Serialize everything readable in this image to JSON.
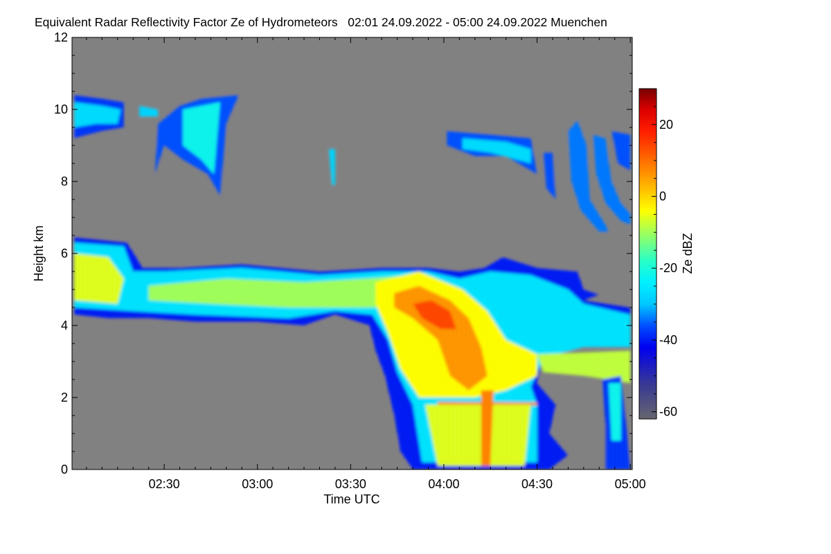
{
  "chart_data": {
    "type": "heatmap",
    "title": "Equivalent Radar Reflectivity Factor Ze of Hydrometeors   02:01 24.09.2022 - 05:00 24.09.2022 Muenchen",
    "xlabel": "Time UTC",
    "ylabel": "Height km",
    "x_unit": "minutes after 02:00 UTC",
    "xlim": [
      1,
      180
    ],
    "ylim": [
      0,
      12
    ],
    "x_ticks": [
      {
        "value": 30,
        "label": "02:30"
      },
      {
        "value": 60,
        "label": "03:00"
      },
      {
        "value": 90,
        "label": "03:30"
      },
      {
        "value": 120,
        "label": "04:00"
      },
      {
        "value": 150,
        "label": "04:30"
      },
      {
        "value": 180,
        "label": "05:00"
      }
    ],
    "y_ticks": [
      {
        "value": 0,
        "label": "0"
      },
      {
        "value": 2,
        "label": "2"
      },
      {
        "value": 4,
        "label": "4"
      },
      {
        "value": 6,
        "label": "6"
      },
      {
        "value": 8,
        "label": "8"
      },
      {
        "value": 10,
        "label": "10"
      },
      {
        "value": 12,
        "label": "12"
      }
    ],
    "colorbar": {
      "label": "Ze dBZ",
      "range": [
        -62,
        30
      ],
      "ticks": [
        {
          "value": 20,
          "label": "20"
        },
        {
          "value": 0,
          "label": "0"
        },
        {
          "value": -20,
          "label": "-20"
        },
        {
          "value": -40,
          "label": "-40"
        },
        {
          "value": -60,
          "label": "-60"
        }
      ]
    },
    "background_color": "#808080",
    "regions": [
      {
        "name": "cirrus-left",
        "dbz": -38,
        "points": [
          [
            1,
            10.4
          ],
          [
            10,
            10.3
          ],
          [
            17,
            10.2
          ],
          [
            17,
            9.5
          ],
          [
            10,
            9.4
          ],
          [
            1,
            9.2
          ]
        ]
      },
      {
        "name": "cirrus-left-core",
        "dbz": -27,
        "points": [
          [
            1,
            10.2
          ],
          [
            10,
            10.1
          ],
          [
            16,
            10.0
          ],
          [
            15,
            9.6
          ],
          [
            8,
            9.6
          ],
          [
            1,
            9.5
          ]
        ]
      },
      {
        "name": "cirrus-patch",
        "dbz": -28,
        "points": [
          [
            22,
            10.1
          ],
          [
            28,
            10.0
          ],
          [
            28,
            9.8
          ],
          [
            22,
            9.8
          ]
        ]
      },
      {
        "name": "fallstreak-1",
        "dbz": -36,
        "points": [
          [
            28,
            9.6
          ],
          [
            35,
            10.1
          ],
          [
            42,
            10.3
          ],
          [
            54,
            10.4
          ],
          [
            50,
            9.6
          ],
          [
            48,
            7.6
          ],
          [
            44,
            8.2
          ],
          [
            36,
            8.6
          ],
          [
            30,
            9.0
          ],
          [
            27,
            8.2
          ]
        ]
      },
      {
        "name": "fallstreak-1-core",
        "dbz": -22,
        "points": [
          [
            36,
            10.0
          ],
          [
            48,
            10.2
          ],
          [
            46,
            8.2
          ],
          [
            42,
            8.6
          ],
          [
            36,
            9.0
          ]
        ]
      },
      {
        "name": "fallstreak-2",
        "dbz": -28,
        "points": [
          [
            83,
            8.9
          ],
          [
            85,
            8.9
          ],
          [
            85,
            7.9
          ],
          [
            84,
            7.9
          ]
        ]
      },
      {
        "name": "cirrus-right",
        "dbz": -36,
        "points": [
          [
            121,
            9.4
          ],
          [
            135,
            9.3
          ],
          [
            148,
            9.2
          ],
          [
            150,
            8.2
          ],
          [
            140,
            8.7
          ],
          [
            130,
            8.7
          ],
          [
            121,
            9.0
          ]
        ]
      },
      {
        "name": "cirrus-right-core",
        "dbz": -27,
        "points": [
          [
            126,
            9.2
          ],
          [
            140,
            9.1
          ],
          [
            148,
            8.9
          ],
          [
            148,
            8.5
          ],
          [
            135,
            8.8
          ],
          [
            126,
            8.9
          ]
        ]
      },
      {
        "name": "fallstreak-3",
        "dbz": -36,
        "points": [
          [
            152,
            8.8
          ],
          [
            155,
            8.8
          ],
          [
            156,
            7.5
          ],
          [
            153,
            7.8
          ]
        ]
      },
      {
        "name": "fallstreak-4",
        "dbz": -34,
        "points": [
          [
            160,
            9.4
          ],
          [
            163,
            9.7
          ],
          [
            166,
            9.0
          ],
          [
            167,
            7.5
          ],
          [
            172,
            6.8
          ],
          [
            173,
            6.6
          ],
          [
            170,
            6.6
          ],
          [
            164,
            7.2
          ],
          [
            161,
            8.0
          ]
        ]
      },
      {
        "name": "fallstreak-5",
        "dbz": -34,
        "points": [
          [
            168,
            9.3
          ],
          [
            172,
            9.2
          ],
          [
            174,
            8.0
          ],
          [
            177,
            7.4
          ],
          [
            180,
            7.1
          ],
          [
            180,
            6.8
          ],
          [
            177,
            6.9
          ],
          [
            172,
            7.4
          ],
          [
            169,
            8.2
          ]
        ]
      },
      {
        "name": "fallstreak-6",
        "dbz": -36,
        "points": [
          [
            174,
            9.4
          ],
          [
            180,
            9.3
          ],
          [
            180,
            8.3
          ],
          [
            176,
            8.5
          ]
        ]
      },
      {
        "name": "main-layer-edge",
        "dbz": -40,
        "points": [
          [
            1,
            6.45
          ],
          [
            18,
            6.3
          ],
          [
            21,
            5.9
          ],
          [
            23,
            5.6
          ],
          [
            35,
            5.6
          ],
          [
            55,
            5.7
          ],
          [
            80,
            5.5
          ],
          [
            100,
            5.6
          ],
          [
            115,
            5.6
          ],
          [
            125,
            5.5
          ],
          [
            133,
            5.6
          ],
          [
            139,
            5.9
          ],
          [
            150,
            5.6
          ],
          [
            163,
            5.5
          ],
          [
            165,
            5.0
          ],
          [
            170,
            4.85
          ],
          [
            165,
            4.7
          ],
          [
            180,
            4.5
          ],
          [
            180,
            3.4
          ],
          [
            165,
            3.4
          ],
          [
            152,
            3.2
          ],
          [
            150,
            2.4
          ],
          [
            156,
            1.8
          ],
          [
            154,
            1.0
          ],
          [
            160,
            0.4
          ],
          [
            154,
            0
          ],
          [
            110,
            0
          ],
          [
            106,
            0.5
          ],
          [
            104,
            1.5
          ],
          [
            101,
            2.6
          ],
          [
            98,
            3.3
          ],
          [
            96,
            4.0
          ],
          [
            85,
            4.3
          ],
          [
            75,
            4.0
          ],
          [
            60,
            4.1
          ],
          [
            40,
            4.1
          ],
          [
            25,
            4.2
          ],
          [
            12,
            4.2
          ],
          [
            1,
            4.3
          ]
        ]
      },
      {
        "name": "main-layer-cyan",
        "dbz": -26,
        "points": [
          [
            1,
            6.3
          ],
          [
            17,
            6.2
          ],
          [
            20,
            5.5
          ],
          [
            30,
            5.5
          ],
          [
            55,
            5.6
          ],
          [
            80,
            5.4
          ],
          [
            100,
            5.5
          ],
          [
            115,
            5.5
          ],
          [
            125,
            5.3
          ],
          [
            135,
            5.5
          ],
          [
            148,
            5.4
          ],
          [
            160,
            5.0
          ],
          [
            165,
            4.6
          ],
          [
            180,
            4.3
          ],
          [
            180,
            3.4
          ],
          [
            165,
            3.4
          ],
          [
            152,
            3.1
          ],
          [
            148,
            2.3
          ],
          [
            150,
            1.8
          ],
          [
            150,
            0.2
          ],
          [
            113,
            0.2
          ],
          [
            110,
            1.8
          ],
          [
            105,
            2.7
          ],
          [
            102,
            3.6
          ],
          [
            97,
            4.3
          ],
          [
            85,
            4.4
          ],
          [
            70,
            4.2
          ],
          [
            40,
            4.3
          ],
          [
            20,
            4.4
          ],
          [
            1,
            4.5
          ]
        ]
      },
      {
        "name": "main-layer-core-left",
        "dbz": -6,
        "points": [
          [
            1,
            6.0
          ],
          [
            12,
            5.9
          ],
          [
            17,
            5.3
          ],
          [
            15,
            4.6
          ],
          [
            1,
            4.7
          ]
        ]
      },
      {
        "name": "main-layer-core-mid",
        "dbz": -10,
        "points": [
          [
            25,
            5.1
          ],
          [
            50,
            5.3
          ],
          [
            75,
            5.2
          ],
          [
            95,
            5.3
          ],
          [
            110,
            5.4
          ],
          [
            115,
            4.5
          ],
          [
            95,
            4.5
          ],
          [
            70,
            4.5
          ],
          [
            45,
            4.6
          ],
          [
            25,
            4.7
          ]
        ]
      },
      {
        "name": "convective-core",
        "dbz": -4,
        "points": [
          [
            98,
            5.2
          ],
          [
            112,
            5.5
          ],
          [
            126,
            5.0
          ],
          [
            134,
            4.4
          ],
          [
            140,
            3.6
          ],
          [
            150,
            3.2
          ],
          [
            150,
            2.6
          ],
          [
            140,
            2.2
          ],
          [
            130,
            2.0
          ],
          [
            112,
            2.0
          ],
          [
            106,
            2.8
          ],
          [
            102,
            3.8
          ],
          [
            98,
            4.6
          ]
        ]
      },
      {
        "name": "convective-orange",
        "dbz": 6,
        "points": [
          [
            104,
            4.9
          ],
          [
            112,
            5.1
          ],
          [
            122,
            4.7
          ],
          [
            128,
            4.2
          ],
          [
            132,
            3.4
          ],
          [
            134,
            2.6
          ],
          [
            128,
            2.2
          ],
          [
            122,
            2.6
          ],
          [
            118,
            3.6
          ],
          [
            110,
            4.2
          ],
          [
            104,
            4.5
          ]
        ]
      },
      {
        "name": "convective-red",
        "dbz": 14,
        "points": [
          [
            110,
            4.6
          ],
          [
            116,
            4.7
          ],
          [
            122,
            4.4
          ],
          [
            124,
            3.9
          ],
          [
            119,
            3.9
          ],
          [
            113,
            4.2
          ]
        ]
      },
      {
        "name": "lower-layer-right",
        "dbz": -8,
        "points": [
          [
            150,
            3.2
          ],
          [
            180,
            3.3
          ],
          [
            180,
            2.4
          ],
          [
            165,
            2.6
          ],
          [
            152,
            2.7
          ]
        ]
      },
      {
        "name": "bright-band",
        "dbz": 8,
        "points": [
          [
            118,
            1.88
          ],
          [
            150,
            1.86
          ],
          [
            150,
            1.78
          ],
          [
            118,
            1.8
          ]
        ]
      },
      {
        "name": "rain-core",
        "dbz": -6,
        "points": [
          [
            114,
            1.8
          ],
          [
            148,
            1.8
          ],
          [
            146,
            0.1
          ],
          [
            118,
            0.1
          ]
        ]
      },
      {
        "name": "rain-streak",
        "dbz": 8,
        "points": [
          [
            132,
            2.2
          ],
          [
            136,
            2.2
          ],
          [
            135,
            0.1
          ],
          [
            132,
            0.1
          ]
        ]
      },
      {
        "name": "rain-right",
        "dbz": -38,
        "points": [
          [
            171,
            2.5
          ],
          [
            177,
            2.6
          ],
          [
            179,
            1.0
          ],
          [
            180,
            0
          ],
          [
            172,
            0
          ],
          [
            172,
            1.2
          ]
        ]
      },
      {
        "name": "rain-right-core",
        "dbz": -22,
        "points": [
          [
            173,
            2.4
          ],
          [
            177,
            2.4
          ],
          [
            177,
            0.8
          ],
          [
            174,
            0.8
          ]
        ]
      }
    ]
  }
}
